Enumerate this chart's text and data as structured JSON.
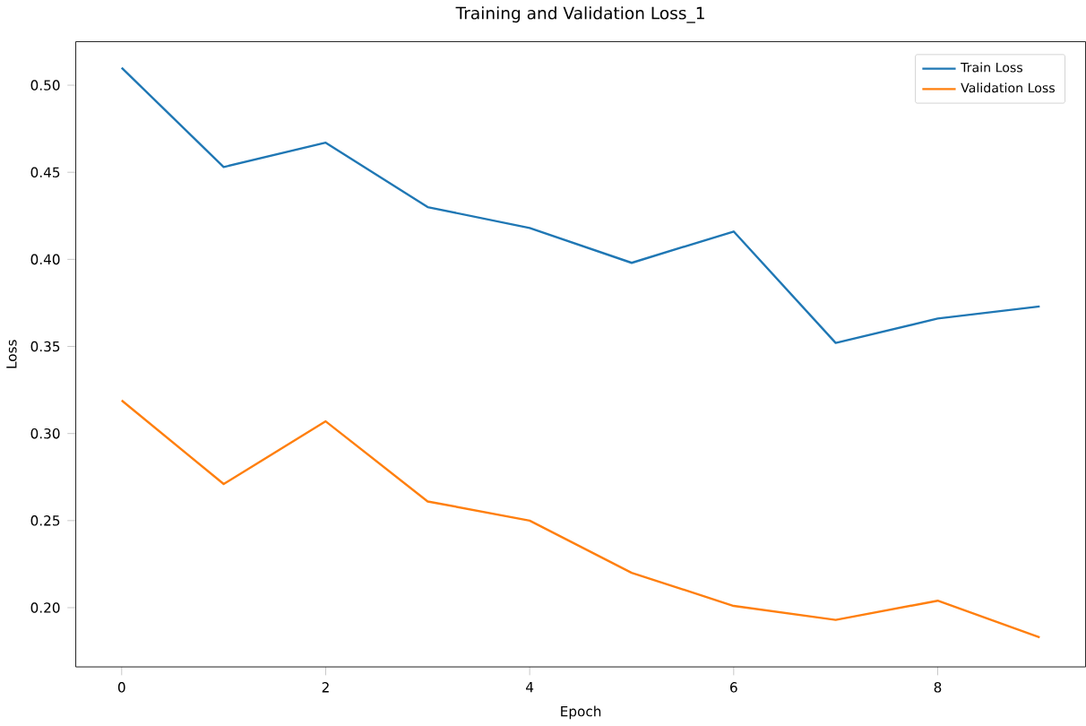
{
  "chart_data": {
    "type": "line",
    "title": "Training and Validation Loss_1",
    "xlabel": "Epoch",
    "ylabel": "Loss",
    "x": [
      0,
      1,
      2,
      3,
      4,
      5,
      6,
      7,
      8,
      9
    ],
    "series": [
      {
        "name": "Train Loss",
        "color": "#1f77b4",
        "values": [
          0.51,
          0.453,
          0.467,
          0.43,
          0.418,
          0.398,
          0.416,
          0.352,
          0.366,
          0.373
        ]
      },
      {
        "name": "Validation Loss",
        "color": "#ff7f0e",
        "values": [
          0.319,
          0.271,
          0.307,
          0.261,
          0.25,
          0.22,
          0.201,
          0.193,
          0.204,
          0.183
        ]
      }
    ],
    "xlim": [
      -0.45,
      9.45
    ],
    "ylim": [
      0.166,
      0.525
    ],
    "xticks": [
      0,
      2,
      4,
      6,
      8
    ],
    "yticks": [
      {
        "value": 0.2,
        "label": "0.20"
      },
      {
        "value": 0.25,
        "label": "0.25"
      },
      {
        "value": 0.3,
        "label": "0.30"
      },
      {
        "value": 0.35,
        "label": "0.35"
      },
      {
        "value": 0.4,
        "label": "0.40"
      },
      {
        "value": 0.45,
        "label": "0.45"
      },
      {
        "value": 0.5,
        "label": "0.50"
      }
    ],
    "legend": "top right",
    "grid": false,
    "marker": "none",
    "line_style": "solid"
  }
}
